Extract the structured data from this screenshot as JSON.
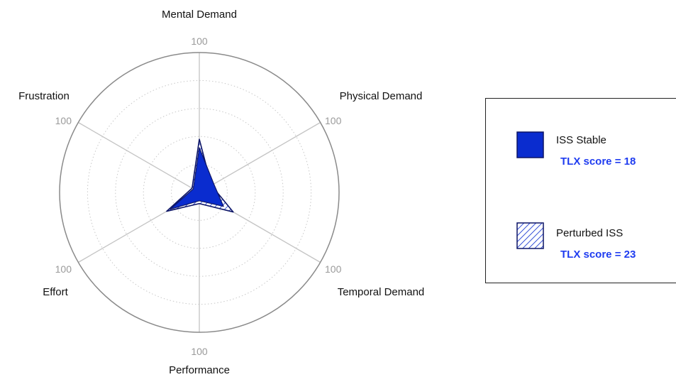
{
  "colors": {
    "series_fill": "#0a2ccf",
    "series_stroke": "#0d1566",
    "score_text": "#1f3cf0",
    "outer_ring": "#8a8a8a",
    "spoke": "#c4c4c4",
    "inner_ring": "#c8c8c8"
  },
  "chart_data": {
    "type": "radar",
    "title": "",
    "axes": [
      "Mental Demand",
      "Physical Demand",
      "Temporal Demand",
      "Performance",
      "Effort",
      "Frustration"
    ],
    "axis_max": 100,
    "max_label": "100",
    "rings": 4,
    "grid": true,
    "legend_position": "right",
    "series": [
      {
        "name": "ISS Stable",
        "score_label": "TLX score = 18",
        "style": "solid",
        "values": [
          32,
          12,
          20,
          6,
          24,
          5
        ]
      },
      {
        "name": "Perturbed ISS",
        "score_label": "TLX score = 23",
        "style": "hatched",
        "values": [
          38,
          10,
          28,
          8,
          27,
          6
        ]
      }
    ]
  }
}
